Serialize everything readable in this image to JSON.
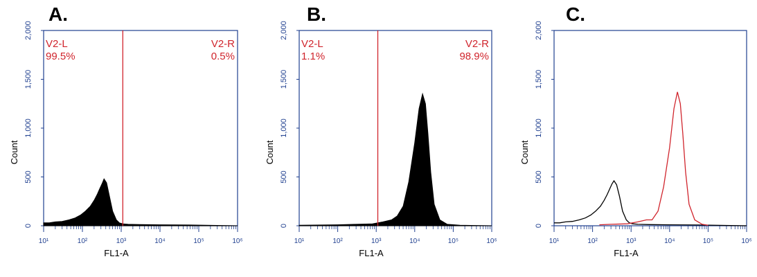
{
  "colors": {
    "axis": "#1f3f8f",
    "gate": "#d0242c",
    "fill": "#000000",
    "overlay_control": "#000000",
    "overlay_sample": "#d0242c"
  },
  "chart_data": [
    {
      "panel": "A.",
      "type": "area",
      "xlabel": "FL1-A",
      "ylabel": "Count",
      "x_scale": "log",
      "xlim": [
        10,
        1000000
      ],
      "ylim": [
        0,
        2000
      ],
      "x_ticks": [
        "10¹",
        "10²",
        "10³",
        "10⁴",
        "10⁵",
        "10⁶"
      ],
      "y_ticks": [
        "0",
        "500",
        "1,000",
        "1,500",
        "2,000"
      ],
      "gate_x": 1100,
      "gate_left": {
        "name": "V2-L",
        "pct": "99.5%"
      },
      "gate_right": {
        "name": "V2-R",
        "pct": "0.5%"
      },
      "series": [
        {
          "style": "filled",
          "color": "#000000",
          "x": [
            10,
            14,
            20,
            30,
            45,
            65,
            90,
            120,
            160,
            200,
            240,
            280,
            320,
            360,
            420,
            500,
            600,
            750,
            900,
            1100,
            1500,
            3000,
            10000,
            60000,
            1000000
          ],
          "y": [
            30,
            30,
            40,
            45,
            60,
            80,
            110,
            150,
            200,
            260,
            320,
            380,
            430,
            480,
            440,
            300,
            150,
            60,
            30,
            20,
            15,
            12,
            10,
            8,
            0
          ]
        }
      ]
    },
    {
      "panel": "B.",
      "type": "area",
      "xlabel": "FL1-A",
      "ylabel": "Count",
      "x_scale": "log",
      "xlim": [
        10,
        1000000
      ],
      "ylim": [
        0,
        2000
      ],
      "x_ticks": [
        "10¹",
        "10²",
        "10³",
        "10⁴",
        "10⁵",
        "10⁶"
      ],
      "y_ticks": [
        "0",
        "500",
        "1,000",
        "1,500",
        "2,000"
      ],
      "gate_x": 1100,
      "gate_left": {
        "name": "V2-L",
        "pct": "1.1%"
      },
      "gate_right": {
        "name": "V2-R",
        "pct": "98.9%"
      },
      "series": [
        {
          "style": "filled",
          "color": "#000000",
          "x": [
            10,
            100,
            300,
            800,
            1500,
            2500,
            3500,
            5000,
            7000,
            10000,
            13000,
            16000,
            19000,
            22000,
            26000,
            32000,
            45000,
            70000,
            150000,
            1000000
          ],
          "y": [
            5,
            10,
            15,
            20,
            40,
            60,
            100,
            200,
            450,
            850,
            1200,
            1350,
            1250,
            950,
            550,
            220,
            60,
            15,
            5,
            0
          ]
        }
      ]
    },
    {
      "panel": "C.",
      "type": "line",
      "xlabel": "FL1-A",
      "ylabel": "Count",
      "x_scale": "log",
      "xlim": [
        10,
        1000000
      ],
      "ylim": [
        0,
        2000
      ],
      "x_ticks": [
        "10¹",
        "10²",
        "10³",
        "10⁴",
        "10⁵",
        "10⁶"
      ],
      "y_ticks": [
        "0",
        "500",
        "1,000",
        "1,500",
        "2,000"
      ],
      "series": [
        {
          "style": "line",
          "color": "#000000",
          "x": [
            10,
            14,
            20,
            30,
            45,
            65,
            90,
            120,
            160,
            200,
            240,
            280,
            320,
            360,
            420,
            500,
            600,
            750,
            900,
            1100,
            1500,
            3000,
            10000,
            60000,
            1000000
          ],
          "y": [
            30,
            30,
            40,
            45,
            60,
            80,
            110,
            150,
            200,
            260,
            320,
            380,
            430,
            460,
            420,
            300,
            150,
            60,
            30,
            20,
            15,
            12,
            10,
            8,
            0
          ]
        },
        {
          "style": "line",
          "color": "#d0242c",
          "x": [
            150,
            300,
            800,
            1500,
            2500,
            3500,
            5000,
            7000,
            10000,
            13000,
            16000,
            19000,
            22000,
            26000,
            32000,
            45000,
            70000,
            100000
          ],
          "y": [
            10,
            15,
            20,
            40,
            60,
            60,
            150,
            400,
            800,
            1200,
            1370,
            1250,
            950,
            550,
            220,
            60,
            15,
            5
          ]
        }
      ]
    }
  ]
}
